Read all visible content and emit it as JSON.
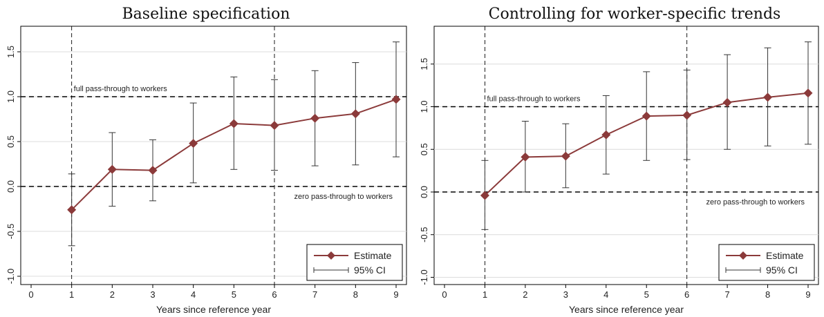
{
  "chart_data": [
    {
      "type": "line",
      "title": "Baseline specification",
      "xlabel": "Years since reference year",
      "ylabel": "",
      "xlim": [
        0,
        9
      ],
      "ylim": [
        -1.0,
        1.5
      ],
      "xticks": [
        "0",
        "1",
        "2",
        "3",
        "4",
        "5",
        "6",
        "7",
        "8",
        "9"
      ],
      "yticks": [
        "-1.0",
        "-0.5",
        "0.0",
        "0.5",
        "1.0",
        "1.5"
      ],
      "grid": true,
      "vlines": [
        1,
        6
      ],
      "reference_lines": [
        {
          "y": 1.0,
          "label": "full pass-through to workers"
        },
        {
          "y": 0.0,
          "label": "zero pass-through to workers"
        }
      ],
      "x": [
        1,
        2,
        3,
        4,
        5,
        6,
        7,
        8,
        9
      ],
      "series": [
        {
          "name": "Estimate",
          "values": [
            -0.26,
            0.19,
            0.18,
            0.48,
            0.7,
            0.68,
            0.76,
            0.81,
            0.97
          ]
        },
        {
          "name": "95% CI",
          "lower": [
            -0.66,
            -0.22,
            -0.16,
            0.04,
            0.19,
            0.18,
            0.23,
            0.24,
            0.33
          ],
          "upper": [
            0.14,
            0.6,
            0.52,
            0.93,
            1.22,
            1.19,
            1.29,
            1.38,
            1.61
          ]
        }
      ],
      "legend": {
        "position": "bottom-right",
        "entries": [
          "Estimate",
          "95% CI"
        ]
      },
      "colors": {
        "estimate": "#8b3a3a",
        "ci": "#333333"
      }
    },
    {
      "type": "line",
      "title": "Controlling for worker-specific trends",
      "xlabel": "Years since reference year",
      "ylabel": "",
      "xlim": [
        0,
        9
      ],
      "ylim": [
        -1.0,
        1.5
      ],
      "xticks": [
        "0",
        "1",
        "2",
        "3",
        "4",
        "5",
        "6",
        "7",
        "8",
        "9"
      ],
      "yticks": [
        "-1.0",
        "-0.5",
        "0.0",
        "0.5",
        "1.0",
        "1.5"
      ],
      "grid": true,
      "vlines": [
        1,
        6
      ],
      "reference_lines": [
        {
          "y": 1.0,
          "label": "full pass-through to workers"
        },
        {
          "y": 0.0,
          "label": "zero pass-through to workers"
        }
      ],
      "x": [
        1,
        2,
        3,
        4,
        5,
        6,
        7,
        8,
        9
      ],
      "series": [
        {
          "name": "Estimate",
          "values": [
            -0.04,
            0.41,
            0.42,
            0.67,
            0.89,
            0.9,
            1.05,
            1.11,
            1.16
          ]
        },
        {
          "name": "95% CI",
          "lower": [
            -0.44,
            0.0,
            0.05,
            0.21,
            0.37,
            0.38,
            0.5,
            0.54,
            0.56
          ],
          "upper": [
            0.37,
            0.83,
            0.8,
            1.13,
            1.41,
            1.43,
            1.61,
            1.69,
            1.76
          ]
        }
      ],
      "legend": {
        "position": "bottom-right",
        "entries": [
          "Estimate",
          "95% CI"
        ]
      },
      "colors": {
        "estimate": "#8b3a3a",
        "ci": "#333333"
      }
    }
  ]
}
